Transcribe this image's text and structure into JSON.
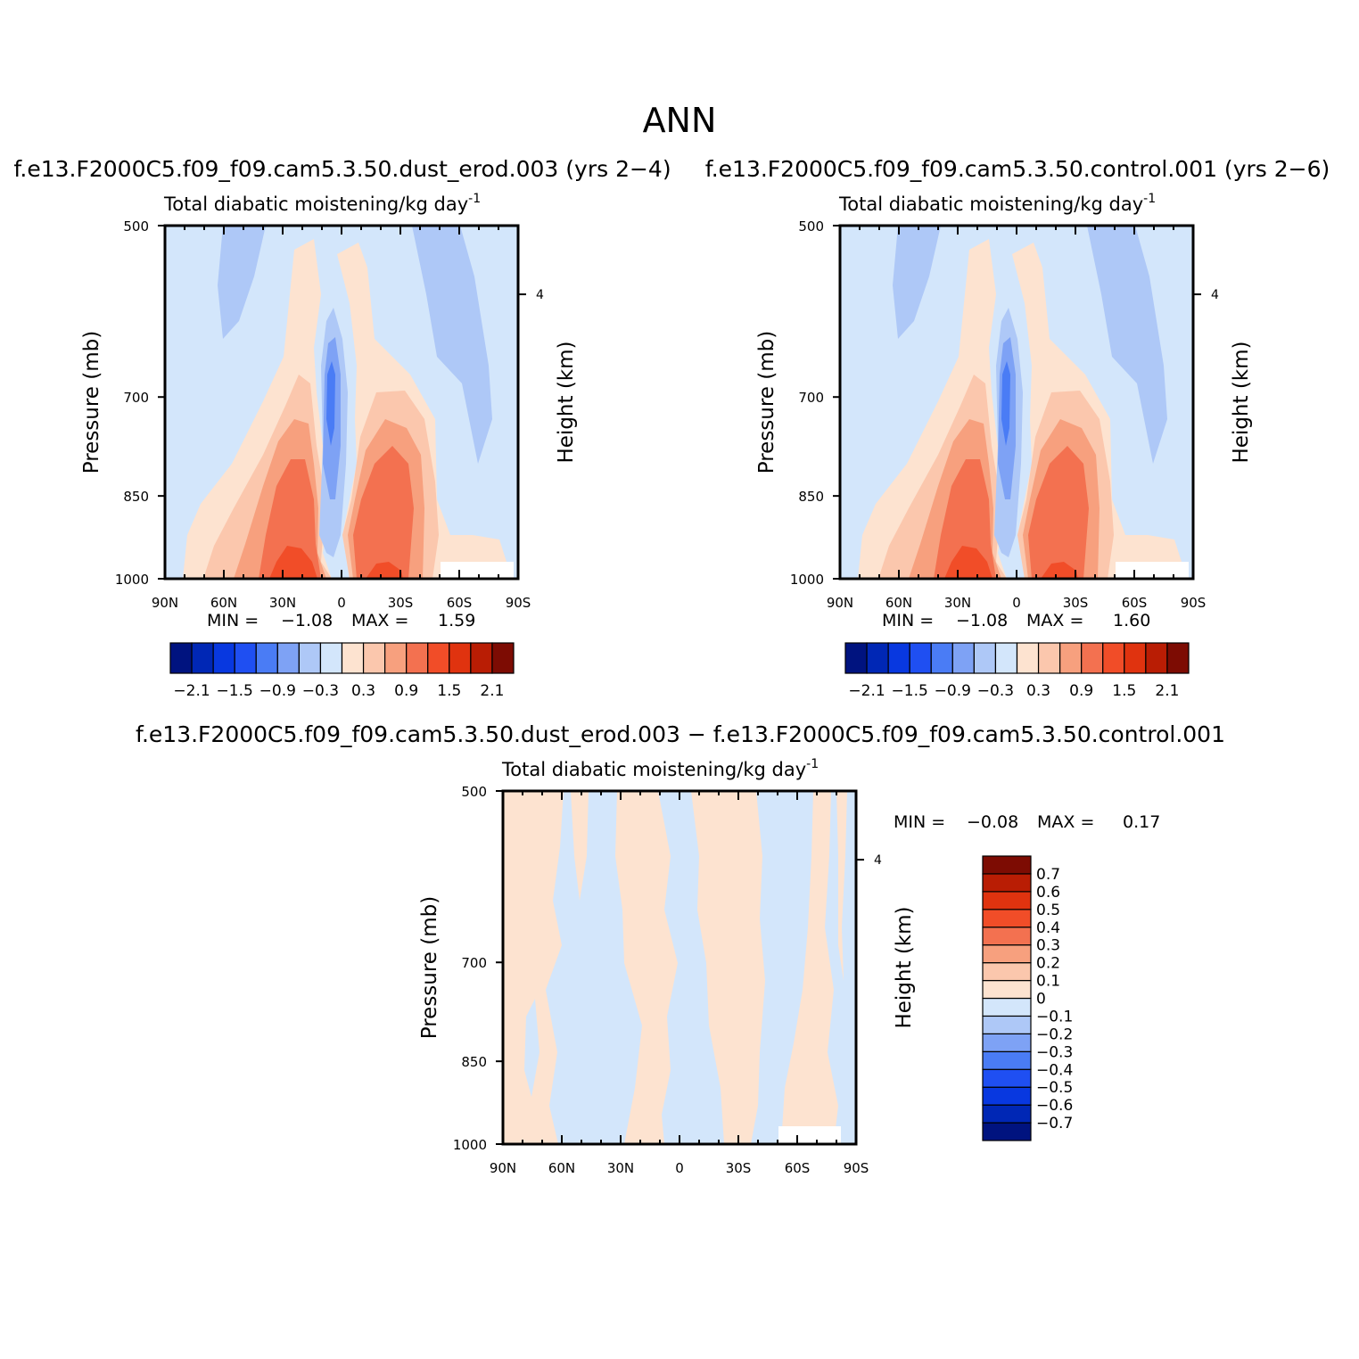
{
  "figure": {
    "title": "ANN"
  },
  "panels": [
    {
      "case": "f.e13.F2000C5.f09_f09.cam5.3.50.dust_erod.003  (yrs 2-4)",
      "variable": "Total diabatic moistening/kg day",
      "superscript": "-1",
      "ylabel": "Pressure (mb)",
      "ylabel_right": "Height (km)",
      "min_label": "MIN =",
      "min_value": "-1.08",
      "max_label": "MAX =",
      "max_value": "1.59"
    },
    {
      "case": "f.e13.F2000C5.f09_f09.cam5.3.50.control.001  (yrs 2-6)",
      "variable": "Total diabatic moistening/kg day",
      "superscript": "-1",
      "ylabel": "Pressure (mb)",
      "ylabel_right": "Height (km)",
      "min_label": "MIN =",
      "min_value": "-1.08",
      "max_label": "MAX =",
      "max_value": "1.60"
    },
    {
      "case": "f.e13.F2000C5.f09_f09.cam5.3.50.dust_erod.003 - f.e13.F2000C5.f09_f09.cam5.3.50.control.001",
      "variable": "Total diabatic moistening/kg day",
      "superscript": "-1",
      "ylabel": "Pressure (mb)",
      "ylabel_right": "Height (km)",
      "min_label": "MIN =",
      "min_value": "-0.08",
      "max_label": "MAX =",
      "max_value": "0.17"
    }
  ],
  "chart_data": [
    {
      "type": "heatmap",
      "x": {
        "ticks": [
          "90N",
          "60N",
          "30N",
          "0",
          "30S",
          "60S",
          "90S"
        ],
        "values": [
          90,
          60,
          30,
          0,
          -30,
          -60,
          -90
        ],
        "range": [
          90,
          -90
        ]
      },
      "y": {
        "ticks": [
          "500",
          "700",
          "850",
          "1000"
        ],
        "values": [
          500,
          700,
          850,
          1000
        ],
        "range": [
          500,
          1000
        ]
      },
      "y_right": {
        "ticks": [
          "4"
        ],
        "values": [
          4
        ]
      },
      "colorbar": {
        "orientation": "horizontal",
        "levels": [
          -2.4,
          -2.1,
          -1.8,
          -1.5,
          -1.2,
          -0.9,
          -0.6,
          -0.3,
          0,
          0.3,
          0.6,
          0.9,
          1.2,
          1.5,
          1.8,
          2.1,
          2.4
        ],
        "tick_labels": [
          "-2.1",
          "-1.5",
          "-0.9",
          "-0.3",
          "0.3",
          "0.9",
          "1.5",
          "2.1"
        ],
        "tick_values": [
          -2.1,
          -1.5,
          -0.9,
          -0.3,
          0.3,
          0.9,
          1.5,
          2.1
        ],
        "colors": [
          "#00137f",
          "#0027b5",
          "#0838e0",
          "#1f4ff2",
          "#4a7cf5",
          "#7ea2f5",
          "#aec8f7",
          "#d3e6fb",
          "#fde3d0",
          "#fbc7ad",
          "#f7a07e",
          "#f37150",
          "#f14d28",
          "#e0330f",
          "#b91d04",
          "#7d0c03"
        ]
      },
      "grid": false
    },
    {
      "type": "heatmap",
      "x": {
        "ticks": [
          "90N",
          "60N",
          "30N",
          "0",
          "30S",
          "60S",
          "90S"
        ],
        "values": [
          90,
          60,
          30,
          0,
          -30,
          -60,
          -90
        ],
        "range": [
          90,
          -90
        ]
      },
      "y": {
        "ticks": [
          "500",
          "700",
          "850",
          "1000"
        ],
        "values": [
          500,
          700,
          850,
          1000
        ],
        "range": [
          500,
          1000
        ]
      },
      "y_right": {
        "ticks": [
          "4"
        ],
        "values": [
          4
        ]
      },
      "colorbar": {
        "orientation": "horizontal",
        "levels": [
          -2.4,
          -2.1,
          -1.8,
          -1.5,
          -1.2,
          -0.9,
          -0.6,
          -0.3,
          0,
          0.3,
          0.6,
          0.9,
          1.2,
          1.5,
          1.8,
          2.1,
          2.4
        ],
        "tick_labels": [
          "-2.1",
          "-1.5",
          "-0.9",
          "-0.3",
          "0.3",
          "0.9",
          "1.5",
          "2.1"
        ],
        "tick_values": [
          -2.1,
          -1.5,
          -0.9,
          -0.3,
          0.3,
          0.9,
          1.5,
          2.1
        ],
        "colors": [
          "#00137f",
          "#0027b5",
          "#0838e0",
          "#1f4ff2",
          "#4a7cf5",
          "#7ea2f5",
          "#aec8f7",
          "#d3e6fb",
          "#fde3d0",
          "#fbc7ad",
          "#f7a07e",
          "#f37150",
          "#f14d28",
          "#e0330f",
          "#b91d04",
          "#7d0c03"
        ]
      },
      "grid": false
    },
    {
      "type": "heatmap",
      "x": {
        "ticks": [
          "90N",
          "60N",
          "30N",
          "0",
          "30S",
          "60S",
          "90S"
        ],
        "values": [
          90,
          60,
          30,
          0,
          -30,
          -60,
          -90
        ],
        "range": [
          90,
          -90
        ]
      },
      "y": {
        "ticks": [
          "500",
          "700",
          "850",
          "1000"
        ],
        "values": [
          500,
          700,
          850,
          1000
        ],
        "range": [
          500,
          1000
        ]
      },
      "y_right": {
        "ticks": [
          "4"
        ],
        "values": [
          4
        ]
      },
      "colorbar": {
        "orientation": "vertical",
        "levels": [
          -0.8,
          -0.7,
          -0.6,
          -0.5,
          -0.4,
          -0.3,
          -0.2,
          -0.1,
          0,
          0.1,
          0.2,
          0.3,
          0.4,
          0.5,
          0.6,
          0.7,
          0.8
        ],
        "tick_labels": [
          "0.7",
          "0.6",
          "0.5",
          "0.4",
          "0.3",
          "0.2",
          "0.1",
          "0",
          "-0.1",
          "-0.2",
          "-0.3",
          "-0.4",
          "-0.5",
          "-0.6",
          "-0.7"
        ],
        "tick_values": [
          0.7,
          0.6,
          0.5,
          0.4,
          0.3,
          0.2,
          0.1,
          0,
          -0.1,
          -0.2,
          -0.3,
          -0.4,
          -0.5,
          -0.6,
          -0.7
        ],
        "colors": [
          "#00137f",
          "#0027b5",
          "#0838e0",
          "#1f4ff2",
          "#4a7cf5",
          "#7ea2f5",
          "#aec8f7",
          "#d3e6fb",
          "#fde3d0",
          "#fbc7ad",
          "#f7a07e",
          "#f37150",
          "#f14d28",
          "#e0330f",
          "#b91d04",
          "#7d0c03"
        ]
      },
      "grid": false
    }
  ]
}
